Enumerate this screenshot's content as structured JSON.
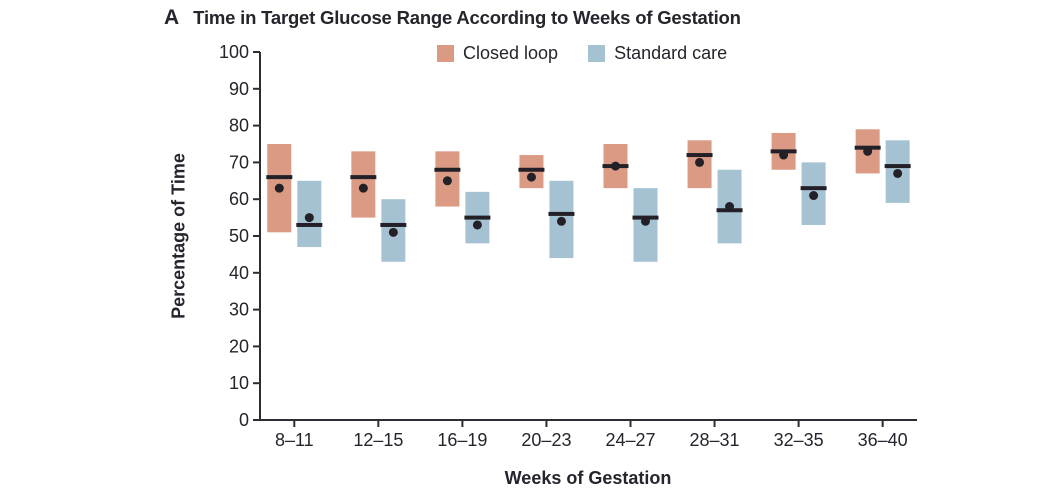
{
  "figure": {
    "panel_label": "A",
    "title": "Time in Target Glucose Range According to Weeks of Gestation"
  },
  "chart_data": {
    "type": "bar",
    "subtype": "floating-box-range with median line and mean dot",
    "title": "Time in Target Glucose Range According to Weeks of Gestation",
    "xlabel": "Weeks of Gestation",
    "ylabel": "Percentage of Time",
    "ylim": [
      0,
      100
    ],
    "ytick_step": 10,
    "grid": false,
    "legend_position": "top",
    "categories": [
      "8–11",
      "12–15",
      "16–19",
      "20–23",
      "24–27",
      "28–31",
      "32–35",
      "36–40"
    ],
    "series": [
      {
        "name": "Closed loop",
        "color": "#DB9A84",
        "box_low": [
          51,
          55,
          58,
          63,
          63,
          63,
          68,
          67
        ],
        "box_high": [
          75,
          73,
          73,
          72,
          75,
          76,
          78,
          79
        ],
        "median": [
          66,
          66,
          68,
          68,
          69,
          72,
          73,
          74
        ],
        "mean": [
          63,
          63,
          65,
          66,
          69,
          70,
          72,
          73
        ]
      },
      {
        "name": "Standard care",
        "color": "#A5C2D3",
        "box_low": [
          47,
          43,
          48,
          44,
          43,
          48,
          53,
          59
        ],
        "box_high": [
          65,
          60,
          62,
          65,
          63,
          68,
          70,
          76
        ],
        "median": [
          53,
          53,
          55,
          56,
          55,
          57,
          63,
          69
        ],
        "mean": [
          55,
          51,
          53,
          54,
          54,
          58,
          61,
          67
        ]
      }
    ],
    "marker_color": "#232127",
    "axis_color": "#2e2c32"
  }
}
